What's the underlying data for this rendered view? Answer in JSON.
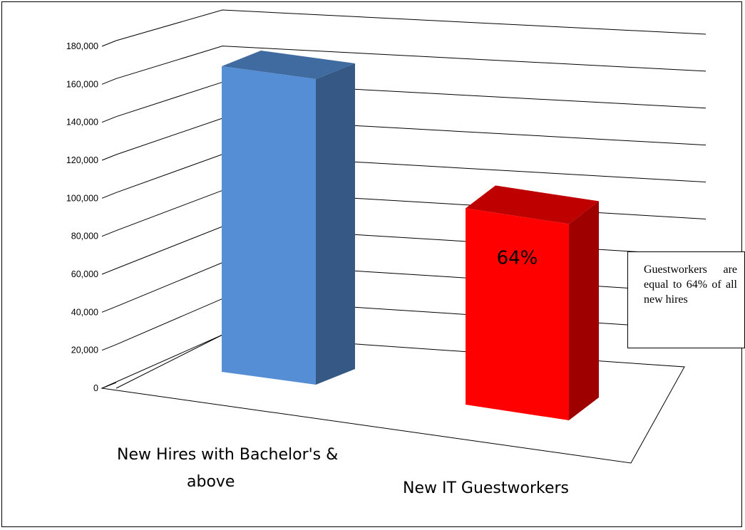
{
  "chart_data": {
    "type": "bar",
    "categories": [
      "New Hires with Bachelor's & above",
      "New IT Guestworkers"
    ],
    "series": [
      {
        "values": [
          165000,
          106000
        ],
        "colors": [
          "#558ed5",
          "#ff0000"
        ]
      }
    ],
    "data_labels": [
      "",
      "64%"
    ],
    "y_ticks": [
      "0",
      "20,000",
      "40,000",
      "60,000",
      "80,000",
      "100,000",
      "120,000",
      "140,000",
      "160,000",
      "180,000"
    ],
    "ylim": [
      0,
      180000
    ],
    "grid": true,
    "legend": "none",
    "annotation": "Guestworkers are equal to 64% of all new hires",
    "style": "3d-column"
  }
}
